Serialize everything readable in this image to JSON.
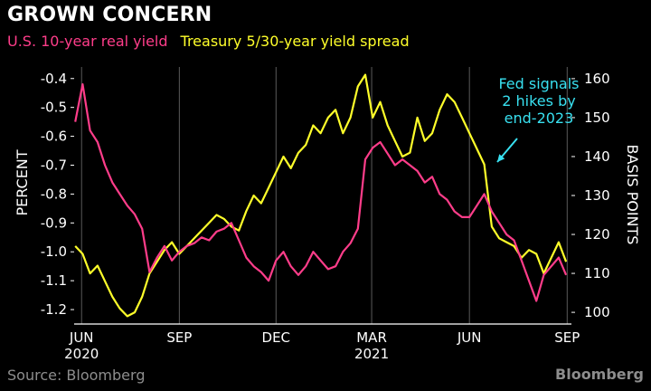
{
  "header": {
    "title": "GROWN CONCERN",
    "legend_real_yield": "U.S. 10-year real yield",
    "legend_spread": "Treasury 5/30-year yield spread"
  },
  "footer": {
    "source": "Source: Bloomberg",
    "brand": "Bloomberg"
  },
  "colors": {
    "background": "#000000",
    "real_yield": "#ff3d8a",
    "spread": "#ffff2a",
    "annotation": "#38e0f0",
    "gridline": "#5a5a5a"
  },
  "chart_data": {
    "type": "line",
    "title": "GROWN CONCERN",
    "x_tick_labels": [
      "JUN",
      "SEP",
      "DEC",
      "MAR",
      "JUN",
      "SEP"
    ],
    "x_tick_dates": [
      "2020-06-01",
      "2020-09-01",
      "2020-12-01",
      "2021-03-01",
      "2021-06-01",
      "2021-09-01"
    ],
    "x_year_labels": [
      {
        "text": "2020",
        "date": "2020-06-01"
      },
      {
        "text": "2021",
        "date": "2021-03-01"
      }
    ],
    "x_range": [
      "2020-05-25",
      "2021-09-05"
    ],
    "y_left": {
      "label": "PERCENT",
      "range": [
        -1.25,
        -0.36
      ],
      "tick_values": [
        -0.4,
        -0.5,
        -0.6,
        -0.7,
        -0.8,
        -0.9,
        -1.0,
        -1.1,
        -1.2
      ],
      "tick_labels": [
        "-0.4",
        "-0.5",
        "-0.6",
        "-0.7",
        "-0.8",
        "-0.9",
        "-1.0",
        "-1.1",
        "-1.2"
      ]
    },
    "y_right": {
      "label": "BASIS POINTS",
      "range": [
        97,
        163
      ],
      "tick_values": [
        160,
        150,
        140,
        130,
        120,
        110,
        100
      ],
      "tick_labels": [
        "160",
        "150",
        "140",
        "130",
        "120",
        "110",
        "100"
      ]
    },
    "grid": "vertical",
    "series": [
      {
        "name": "U.S. 10-year real yield",
        "axis": "left",
        "x": [
          "2020-05-26",
          "2020-06-02",
          "2020-06-09",
          "2020-06-16",
          "2020-06-23",
          "2020-06-30",
          "2020-07-07",
          "2020-07-14",
          "2020-07-21",
          "2020-07-28",
          "2020-08-04",
          "2020-08-11",
          "2020-08-18",
          "2020-08-25",
          "2020-09-01",
          "2020-09-08",
          "2020-09-15",
          "2020-09-22",
          "2020-09-29",
          "2020-10-06",
          "2020-10-13",
          "2020-10-20",
          "2020-10-27",
          "2020-11-03",
          "2020-11-10",
          "2020-11-17",
          "2020-11-24",
          "2020-12-01",
          "2020-12-08",
          "2020-12-15",
          "2020-12-22",
          "2020-12-29",
          "2021-01-05",
          "2021-01-12",
          "2021-01-19",
          "2021-01-26",
          "2021-02-02",
          "2021-02-09",
          "2021-02-16",
          "2021-02-23",
          "2021-03-02",
          "2021-03-09",
          "2021-03-16",
          "2021-03-23",
          "2021-03-30",
          "2021-04-06",
          "2021-04-13",
          "2021-04-20",
          "2021-04-27",
          "2021-05-04",
          "2021-05-11",
          "2021-05-18",
          "2021-05-25",
          "2021-06-01",
          "2021-06-08",
          "2021-06-15",
          "2021-06-22",
          "2021-06-29",
          "2021-07-06",
          "2021-07-13",
          "2021-07-20",
          "2021-07-27",
          "2021-08-03",
          "2021-08-10",
          "2021-08-17",
          "2021-08-24",
          "2021-08-31"
        ],
        "values": [
          -0.55,
          -0.42,
          -0.58,
          -0.62,
          -0.7,
          -0.76,
          -0.8,
          -0.84,
          -0.87,
          -0.92,
          -1.07,
          -1.02,
          -0.98,
          -1.03,
          -1.0,
          -0.98,
          -0.97,
          -0.95,
          -0.96,
          -0.93,
          -0.92,
          -0.9,
          -0.96,
          -1.02,
          -1.05,
          -1.07,
          -1.1,
          -1.03,
          -1.0,
          -1.05,
          -1.08,
          -1.05,
          -1.0,
          -1.03,
          -1.06,
          -1.05,
          -1.0,
          -0.97,
          -0.92,
          -0.68,
          -0.64,
          -0.62,
          -0.66,
          -0.7,
          -0.68,
          -0.7,
          -0.72,
          -0.76,
          -0.74,
          -0.8,
          -0.82,
          -0.86,
          -0.88,
          -0.88,
          -0.84,
          -0.8,
          -0.86,
          -0.9,
          -0.94,
          -0.96,
          -1.03,
          -1.1,
          -1.17,
          -1.08,
          -1.05,
          -1.02,
          -1.08
        ]
      },
      {
        "name": "Treasury 5/30-year yield spread",
        "axis": "right",
        "x": [
          "2020-05-26",
          "2020-06-02",
          "2020-06-09",
          "2020-06-16",
          "2020-06-23",
          "2020-06-30",
          "2020-07-07",
          "2020-07-14",
          "2020-07-21",
          "2020-07-28",
          "2020-08-04",
          "2020-08-11",
          "2020-08-18",
          "2020-08-25",
          "2020-09-01",
          "2020-09-08",
          "2020-09-15",
          "2020-09-22",
          "2020-09-29",
          "2020-10-06",
          "2020-10-13",
          "2020-10-20",
          "2020-10-27",
          "2020-11-03",
          "2020-11-10",
          "2020-11-17",
          "2020-11-24",
          "2020-12-01",
          "2020-12-08",
          "2020-12-15",
          "2020-12-22",
          "2020-12-29",
          "2021-01-05",
          "2021-01-12",
          "2021-01-19",
          "2021-01-26",
          "2021-02-02",
          "2021-02-09",
          "2021-02-16",
          "2021-02-23",
          "2021-03-02",
          "2021-03-09",
          "2021-03-16",
          "2021-03-23",
          "2021-03-30",
          "2021-04-06",
          "2021-04-13",
          "2021-04-20",
          "2021-04-27",
          "2021-05-04",
          "2021-05-11",
          "2021-05-18",
          "2021-05-25",
          "2021-06-01",
          "2021-06-08",
          "2021-06-15",
          "2021-06-22",
          "2021-06-29",
          "2021-07-06",
          "2021-07-13",
          "2021-07-20",
          "2021-07-27",
          "2021-08-03",
          "2021-08-10",
          "2021-08-17",
          "2021-08-24",
          "2021-08-31"
        ],
        "values": [
          117,
          115,
          110,
          112,
          108,
          104,
          101,
          99,
          100,
          104,
          110,
          113,
          116,
          118,
          115,
          117,
          119,
          121,
          123,
          125,
          124,
          122,
          121,
          126,
          130,
          128,
          132,
          136,
          140,
          137,
          141,
          143,
          148,
          146,
          150,
          152,
          146,
          150,
          158,
          161,
          150,
          154,
          148,
          144,
          140,
          141,
          150,
          144,
          146,
          152,
          156,
          154,
          150,
          146,
          142,
          138,
          122,
          119,
          118,
          117,
          114,
          116,
          115,
          110,
          114,
          118,
          113
        ]
      }
    ],
    "annotations": [
      {
        "text": [
          "Fed signals",
          "2 hikes by",
          "end-2023"
        ],
        "date": "2021-06-17",
        "value_right": 140
      }
    ]
  }
}
